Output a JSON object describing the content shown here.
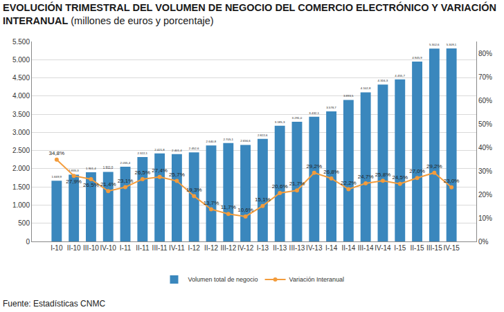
{
  "chart_data": {
    "type": "bar",
    "title": "EVOLUCIÓN TRIMESTRAL DEL VOLUMEN DE NEGOCIO DEL COMERCIO ELECTRÓNICO Y VARIACIÓN INTERANUAL",
    "subtitle": "(millones de euros y porcentaje)",
    "source": "Fuente: Estadísticas CNMC",
    "categories": [
      "I-10",
      "II-10",
      "III-10",
      "IV-10",
      "I-11",
      "II-11",
      "III-11",
      "IV-11",
      "I-12",
      "II-12",
      "III-12",
      "IV-12",
      "I-13",
      "II-13",
      "III-13",
      "IV-13",
      "I-14",
      "II-14",
      "III-14",
      "IV-14",
      "I-15",
      "II-15",
      "III-15",
      "IV-15"
    ],
    "series": [
      {
        "name": "Volumen total de negocio",
        "type": "bar",
        "color": "#3a87bd",
        "values": [
          1669.9,
          1835.3,
          1901.4,
          1911.0,
          2055.4,
          2322.1,
          2421.8,
          2401.4,
          2452.6,
          2640.8,
          2705.1,
          2656.6,
          2822.6,
          3185.3,
          3291.0,
          3432.1,
          3578.7,
          3893.5,
          4102.8,
          4316.3,
          4455.7,
          4945.9,
          5302.6,
          5309.1
        ],
        "value_labels": [
          "1.669,9",
          "1.835,3",
          "1.901,4",
          "1.911,0",
          "2.055,4",
          "2.322,1",
          "2.421,8",
          "2.401,4",
          "2.452,6",
          "2.640,8",
          "2.705,1",
          "2.656,6",
          "2.822,6",
          "3.185,3",
          "3.291,0",
          "3.432,1",
          "3.578,7",
          "3.893,5",
          "4.102,8",
          "4.316,3",
          "4.455,7",
          "4.945,9",
          "5.302,6",
          "5.309,1"
        ]
      },
      {
        "name": "Variación Interanual",
        "type": "line",
        "axis": "y2",
        "color": "#f39c3c",
        "marker": "circle",
        "line_style": "solid",
        "values": [
          34.8,
          27.9,
          26.5,
          21.4,
          23.1,
          26.5,
          27.4,
          25.7,
          19.3,
          13.7,
          11.7,
          10.6,
          15.1,
          20.6,
          21.7,
          29.2,
          26.8,
          22.2,
          24.7,
          25.8,
          24.5,
          27.0,
          29.2,
          23.0
        ],
        "value_labels": [
          "34,8%",
          "27,9%",
          "26,5%",
          "21,4%",
          "23,1%",
          "26,5%",
          "27,4%",
          "25,7%",
          "19,3%",
          "13,7%",
          "11,7%",
          "10,6%",
          "15,1%",
          "20,6%",
          "21,7%",
          "29,2%",
          "26,8%",
          "22,2%",
          "24,7%",
          "25,8%",
          "24,5%",
          "27,0%",
          "29,2%",
          "23,0%"
        ]
      }
    ],
    "ylim": [
      0,
      5500
    ],
    "yticks": [
      0,
      500,
      {
        "value": 1000,
        "label": "1.000"
      },
      {
        "value": 1500,
        "label": "1.500"
      },
      {
        "value": 2000,
        "label": "2.000"
      },
      {
        "value": 2500,
        "label": "2.500"
      },
      {
        "value": 3000,
        "label": "3.000"
      },
      {
        "value": 3500,
        "label": "3.500"
      },
      {
        "value": 4000,
        "label": "4.000"
      },
      {
        "value": 4500,
        "label": "4.500"
      },
      {
        "value": 5000,
        "label": "5.000"
      },
      {
        "value": 5500,
        "label": "5.500"
      }
    ],
    "y2lim": [
      0,
      85
    ],
    "y2ticks": [
      {
        "value": 0,
        "label": "0%"
      },
      {
        "value": 10,
        "label": "10%"
      },
      {
        "value": 20,
        "label": "20%"
      },
      {
        "value": 30,
        "label": "30%"
      },
      {
        "value": 40,
        "label": "40%"
      },
      {
        "value": 50,
        "label": "50%"
      },
      {
        "value": 60,
        "label": "60%"
      },
      {
        "value": 70,
        "label": "70%"
      },
      {
        "value": 80,
        "label": "80%"
      }
    ],
    "grid": true,
    "legend": "bottom",
    "data_labels": true
  }
}
